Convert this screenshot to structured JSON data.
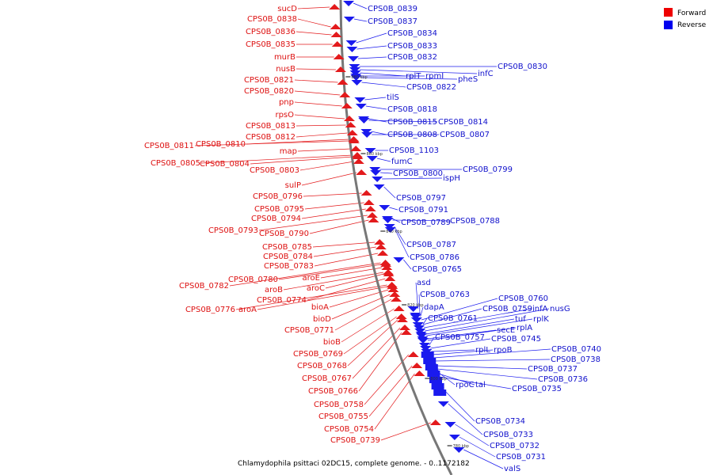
{
  "caption": "Chlamydophila psittaci 02DC15, complete genome. - 0..1172182",
  "legend": [
    {
      "label": "Forward",
      "color": "#ee0000"
    },
    {
      "label": "Reverse",
      "color": "#0000ee"
    }
  ],
  "colors": {
    "forward": "#e31a1c",
    "reverse": "#1a1aee",
    "backbone": "#777777"
  },
  "ticks": [
    "880 kbp",
    "860 kbp",
    "840 kbp",
    "820 kbp",
    "800 kbp",
    "780 kbp"
  ],
  "forward_labels": [
    "sucD",
    "CPS0B_0838",
    "CPS0B_0836",
    "CPS0B_0835",
    "murB",
    "nusB",
    "CPS0B_0821",
    "CPS0B_0820",
    "pnp",
    "rpsO",
    "CPS0B_0813",
    "CPS0B_0812",
    "CPS0B_0811",
    "CPS0B_0810",
    "map",
    "CPS0B_0805",
    "CPS0B_0804",
    "CPS0B_0803",
    "sulP",
    "CPS0B_0796",
    "CPS0B_0795",
    "CPS0B_0794",
    "CPS0B_0793",
    "CPS0B_0790",
    "CPS0B_0785",
    "CPS0B_0784",
    "CPS0B_0783",
    "CPS0B_0782",
    "CPS0B_0780",
    "aroE",
    "aroB",
    "aroC",
    "CPS0B_0774",
    "CPS0B_0776",
    "aroA",
    "bioA",
    "bioD",
    "CPS0B_0771",
    "bioB",
    "CPS0B_0769",
    "CPS0B_0768",
    "CPS0B_0767",
    "CPS0B_0766",
    "CPS0B_0758",
    "CPS0B_0755",
    "CPS0B_0754",
    "CPS0B_0739"
  ],
  "reverse_labels": [
    "CPS0B_0839",
    "CPS0B_0837",
    "CPS0B_0834",
    "CPS0B_0833",
    "CPS0B_0832",
    "CPS0B_0830",
    "infC",
    "rplT",
    "rpmI",
    "pheS",
    "CPS0B_0822",
    "tilS",
    "CPS0B_0818",
    "CPS0B_0815",
    "CPS0B_0814",
    "CPS0B_0808",
    "CPS0B_0807",
    "CPS0B_1103",
    "fumC",
    "CPS0B_0800",
    "CPS0B_0799",
    "ispH",
    "CPS0B_0797",
    "CPS0B_0791",
    "CPS0B_0789",
    "CPS0B_0788",
    "CPS0B_0787",
    "CPS0B_0786",
    "CPS0B_0765",
    "asd",
    "CPS0B_0763",
    "dapA",
    "CPS0B_0760",
    "CPS0B_0759",
    "infA",
    "nusG",
    "CPS0B_0761",
    "tuf",
    "rplK",
    "secE",
    "rplA",
    "CPS0B_0757",
    "CPS0B_0745",
    "rplL",
    "rpoB",
    "CPS0B_0740",
    "CPS0B_0738",
    "CPS0B_0737",
    "CPS0B_0736",
    "rpoC",
    "tal",
    "CPS0B_0735",
    "CPS0B_0734",
    "CPS0B_0733",
    "CPS0B_0732",
    "CPS0B_0731",
    "valS"
  ]
}
